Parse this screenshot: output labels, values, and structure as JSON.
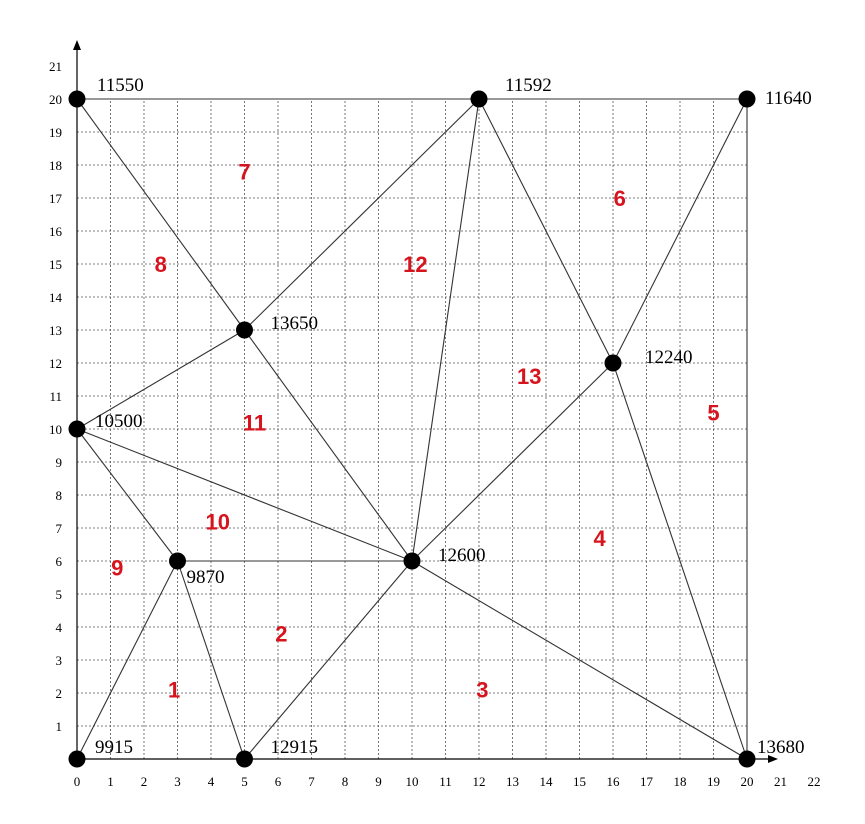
{
  "colors": {
    "region_label": "#d7141e",
    "node": "#000000",
    "line": "#333333"
  },
  "axes": {
    "x_ticks": [
      "0",
      "1",
      "2",
      "3",
      "4",
      "5",
      "6",
      "7",
      "8",
      "9",
      "10",
      "11",
      "12",
      "13",
      "14",
      "15",
      "16",
      "17",
      "18",
      "19",
      "20",
      "21",
      "22"
    ],
    "y_ticks": [
      "1",
      "2",
      "3",
      "4",
      "5",
      "6",
      "7",
      "8",
      "9",
      "10",
      "11",
      "12",
      "13",
      "14",
      "15",
      "16",
      "17",
      "18",
      "19",
      "20",
      "21"
    ]
  },
  "nodes": [
    {
      "id": "A",
      "x": 0,
      "y": 0,
      "label": "9915"
    },
    {
      "id": "B",
      "x": 5,
      "y": 0,
      "label": "12915"
    },
    {
      "id": "C",
      "x": 20,
      "y": 0,
      "label": "13680"
    },
    {
      "id": "D",
      "x": 3,
      "y": 6,
      "label": "9870"
    },
    {
      "id": "E",
      "x": 10,
      "y": 6,
      "label": "12600"
    },
    {
      "id": "F",
      "x": 0,
      "y": 10,
      "label": "10500"
    },
    {
      "id": "G",
      "x": 16,
      "y": 12,
      "label": "12240"
    },
    {
      "id": "H",
      "x": 5,
      "y": 13,
      "label": "13650"
    },
    {
      "id": "I",
      "x": 0,
      "y": 20,
      "label": "11550"
    },
    {
      "id": "J",
      "x": 12,
      "y": 20,
      "label": "11592"
    },
    {
      "id": "K",
      "x": 20,
      "y": 20,
      "label": "11640"
    }
  ],
  "edges": [
    [
      "A",
      "D"
    ],
    [
      "D",
      "B"
    ],
    [
      "B",
      "E"
    ],
    [
      "D",
      "E"
    ],
    [
      "F",
      "D"
    ],
    [
      "F",
      "E"
    ],
    [
      "F",
      "H"
    ],
    [
      "H",
      "E"
    ],
    [
      "I",
      "H"
    ],
    [
      "H",
      "J"
    ],
    [
      "J",
      "E"
    ],
    [
      "J",
      "G"
    ],
    [
      "G",
      "E"
    ],
    [
      "G",
      "K"
    ],
    [
      "G",
      "C"
    ],
    [
      "E",
      "C"
    ],
    [
      "I",
      "J"
    ],
    [
      "J",
      "K"
    ],
    [
      "K",
      "C"
    ]
  ],
  "regions": [
    {
      "label": "1",
      "x": 2.9,
      "y": 2.1
    },
    {
      "label": "2",
      "x": 6.1,
      "y": 3.8
    },
    {
      "label": "3",
      "x": 12.1,
      "y": 2.1
    },
    {
      "label": "4",
      "x": 15.6,
      "y": 6.7
    },
    {
      "label": "5",
      "x": 19.0,
      "y": 10.5
    },
    {
      "label": "6",
      "x": 16.2,
      "y": 17.0
    },
    {
      "label": "7",
      "x": 5.0,
      "y": 17.8
    },
    {
      "label": "8",
      "x": 2.5,
      "y": 15.0
    },
    {
      "label": "9",
      "x": 1.2,
      "y": 5.8
    },
    {
      "label": "10",
      "x": 4.2,
      "y": 7.2
    },
    {
      "label": "11",
      "x": 5.3,
      "y": 10.2
    },
    {
      "label": "12",
      "x": 10.1,
      "y": 15.0
    },
    {
      "label": "13",
      "x": 13.5,
      "y": 11.6
    }
  ]
}
